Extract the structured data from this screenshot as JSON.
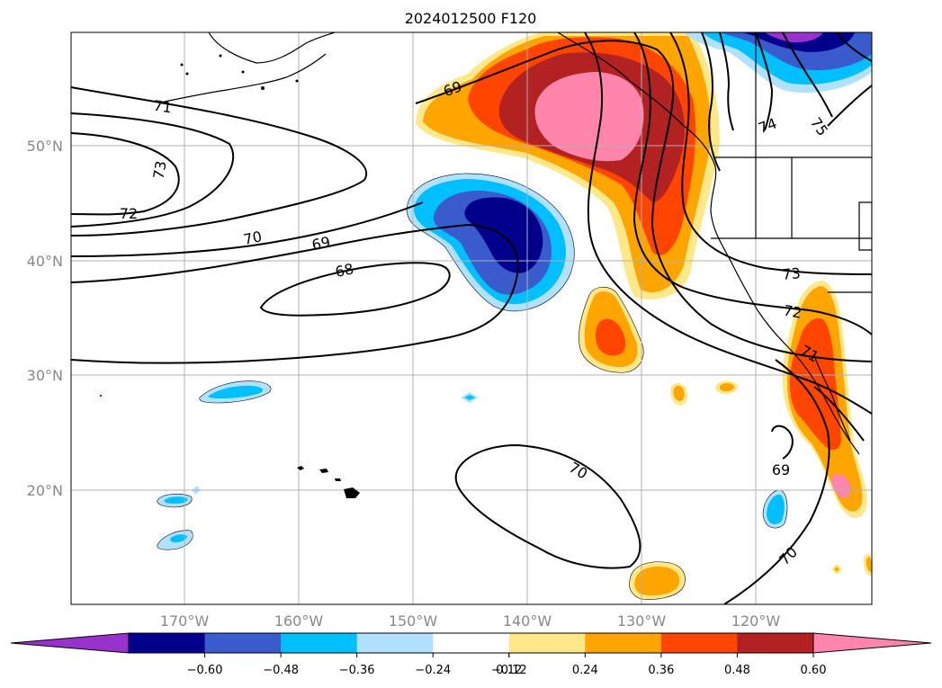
{
  "title": "2024012500 F120",
  "map": {
    "lat_labels": [
      "50°N",
      "40°N",
      "30°N",
      "20°N"
    ],
    "lon_labels": [
      "170°W",
      "160°W",
      "150°W",
      "140°W",
      "130°W",
      "120°W"
    ],
    "contour_labels": [
      "71",
      "73",
      "72",
      "70",
      "69",
      "68",
      "69",
      "74",
      "75",
      "73",
      "72",
      "71",
      "69",
      "70",
      "70"
    ]
  },
  "colorbar": {
    "ticks": [
      "−0.60",
      "−0.48",
      "−0.36",
      "−0.24",
      "−0.12",
      "0.12",
      "0.24",
      "0.36",
      "0.48",
      "0.60"
    ],
    "colors": {
      "under": "#9932cc",
      "n060": "#00008b",
      "n048": "#3a5bcc",
      "n036": "#00bfff",
      "n024": "#b0e2ff",
      "zero": "#ffffff",
      "p012": "#ffe88a",
      "p024": "#ffa500",
      "p036": "#ff4500",
      "p048": "#b22222",
      "over": "#ff85ad"
    }
  }
}
